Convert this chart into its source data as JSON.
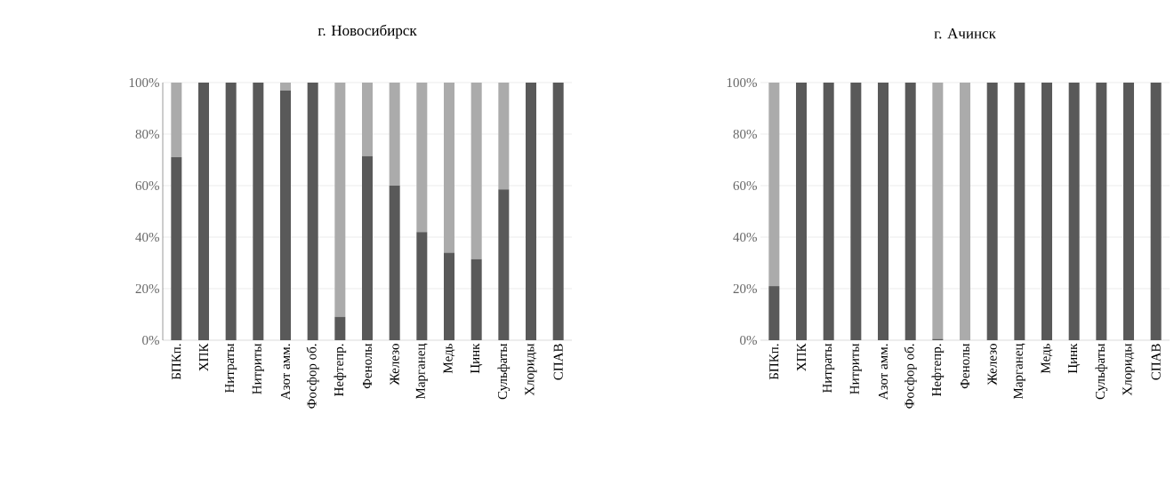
{
  "chart_data": [
    {
      "type": "bar",
      "stacked": true,
      "title": "г. Новосибирск",
      "categories": [
        "БПКп.",
        "ХПК",
        "Нитраты",
        "Нитриты",
        "Азот амм.",
        "Фосфор об.",
        "Нефтепр.",
        "Фенолы",
        "Железо",
        "Марганец",
        "Медь",
        "Цинк",
        "Сульфаты",
        "Хлориды",
        "СПАВ"
      ],
      "series": [
        {
          "color": "#595959",
          "values": [
            71,
            100,
            100,
            100,
            97,
            100,
            9,
            71.5,
            60,
            42,
            34,
            31.5,
            58.5,
            100,
            100
          ]
        },
        {
          "color": "#ababab",
          "values": [
            29,
            0,
            0,
            0,
            3,
            0,
            91,
            28.5,
            40,
            58,
            66,
            68.5,
            41.5,
            0,
            0
          ]
        }
      ],
      "ylim": [
        0,
        100
      ],
      "yticks": [
        {
          "value": 0,
          "label": "0%"
        },
        {
          "value": 20,
          "label": "20%"
        },
        {
          "value": 40,
          "label": "40%"
        },
        {
          "value": 60,
          "label": "60%"
        },
        {
          "value": 80,
          "label": "80%"
        },
        {
          "value": 100,
          "label": "100%"
        }
      ],
      "grid": "y"
    },
    {
      "type": "bar",
      "stacked": true,
      "title": "г. Ачинск",
      "categories": [
        "БПКп.",
        "ХПК",
        "Нитраты",
        "Нитриты",
        "Азот амм.",
        "Фосфор об.",
        "Нефтепр.",
        "Фенолы",
        "Железо",
        "Марганец",
        "Медь",
        "Цинк",
        "Сульфаты",
        "Хлориды",
        "СПАВ"
      ],
      "series": [
        {
          "color": "#595959",
          "values": [
            21,
            100,
            100,
            100,
            100,
            100,
            0.5,
            0,
            100,
            100,
            100,
            100,
            100,
            100,
            100
          ]
        },
        {
          "color": "#ababab",
          "values": [
            79,
            0,
            0,
            0,
            0,
            0,
            99.5,
            100,
            0,
            0,
            0,
            0,
            0,
            0,
            0
          ]
        }
      ],
      "ylim": [
        0,
        100
      ],
      "yticks": [
        {
          "value": 0,
          "label": "0%"
        },
        {
          "value": 20,
          "label": "20%"
        },
        {
          "value": 40,
          "label": "40%"
        },
        {
          "value": 60,
          "label": "60%"
        },
        {
          "value": 80,
          "label": "80%"
        },
        {
          "value": 100,
          "label": "100%"
        }
      ],
      "grid": "y"
    }
  ]
}
